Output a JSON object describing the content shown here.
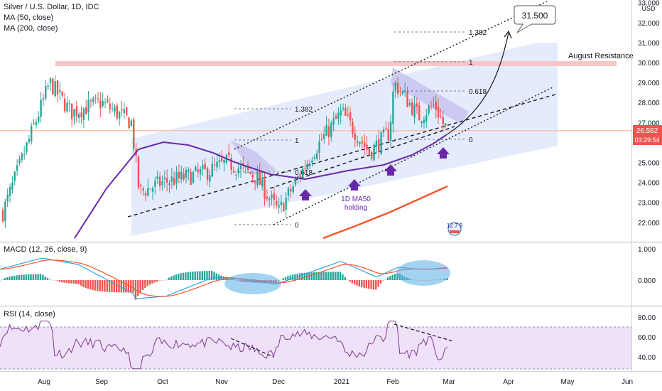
{
  "title": "Silver / U.S. Dollar, 1D, IDC",
  "legend": {
    "ma50": "MA (50, close)",
    "ma200": "MA (200, close)",
    "macd": "MACD (12, 26, close, 9)",
    "rsi": "RSI (14, close)"
  },
  "price_axis": {
    "currency": "USD",
    "ticks": [
      "33.000",
      "32.000",
      "31.000",
      "30.000",
      "29.000",
      "28.000",
      "27.000",
      "25.000",
      "24.000",
      "23.000",
      "22.000"
    ],
    "current_price": "26.582",
    "countdown": "03:29:54"
  },
  "macd_axis": {
    "ticks": [
      "1.000",
      "0.000"
    ]
  },
  "rsi_axis": {
    "ticks": [
      "80.00",
      "60.00",
      "40.00"
    ]
  },
  "time_axis": {
    "ticks": [
      "Aug",
      "Sep",
      "Oct",
      "Nov",
      "Dec",
      "2021",
      "Feb",
      "Mar",
      "Apr",
      "May",
      "Jun"
    ]
  },
  "annotations": {
    "target": "31.500",
    "august_resistance": "August Resistance",
    "ma50_note_line1": "1D MA50",
    "ma50_note_line2": "holding",
    "fib_1": {
      "l1382": "1.382",
      "l1": "1",
      "l0618": "0.618",
      "l0": "0"
    },
    "fib_2": {
      "l1382": "1.382",
      "l1": "1",
      "l0618": "0.618",
      "l0": "0"
    },
    "event_badge": "12 7 9"
  },
  "colors": {
    "up": "#26a69a",
    "down": "#ef5350",
    "ma50": "#6a2aa8",
    "ma200": "#f2572b",
    "channel_fill": "#dde7fb",
    "resistance": "#f5b5b5",
    "rsi_band": "#f0e1fb",
    "rsi_line": "#7a3b8a",
    "macd_line": "#2fa3e0",
    "signal_line": "#f2572b"
  },
  "chart_data": {
    "type": "candlestick",
    "y_range": [
      21.5,
      33.0
    ],
    "approx_close_path": {
      "dates": [
        "Jul 25",
        "Aug 6",
        "Aug 15",
        "Sep 1",
        "Sep 15",
        "Sep 22",
        "Oct 1",
        "Oct 20",
        "Nov 5",
        "Nov 20",
        "Nov 30",
        "Dec 15",
        "Jan 5",
        "Jan 20",
        "Jan 31",
        "Feb 1",
        "Feb 10",
        "Feb 20",
        "Feb 26"
      ],
      "close": [
        22.5,
        29.0,
        27.5,
        28.0,
        27.0,
        23.5,
        24.0,
        24.5,
        25.0,
        24.3,
        22.5,
        25.5,
        27.5,
        25.5,
        26.5,
        29.0,
        27.3,
        27.9,
        26.6
      ]
    },
    "ma50": {
      "start": 22.0,
      "peak": 26.3,
      "end": 26.5
    },
    "ma200": {
      "start": 21.5,
      "end": 23.9
    },
    "macd_range": [
      -0.9,
      1.3
    ],
    "rsi_range": [
      20,
      90
    ],
    "rsi_levels": [
      30,
      70
    ]
  }
}
